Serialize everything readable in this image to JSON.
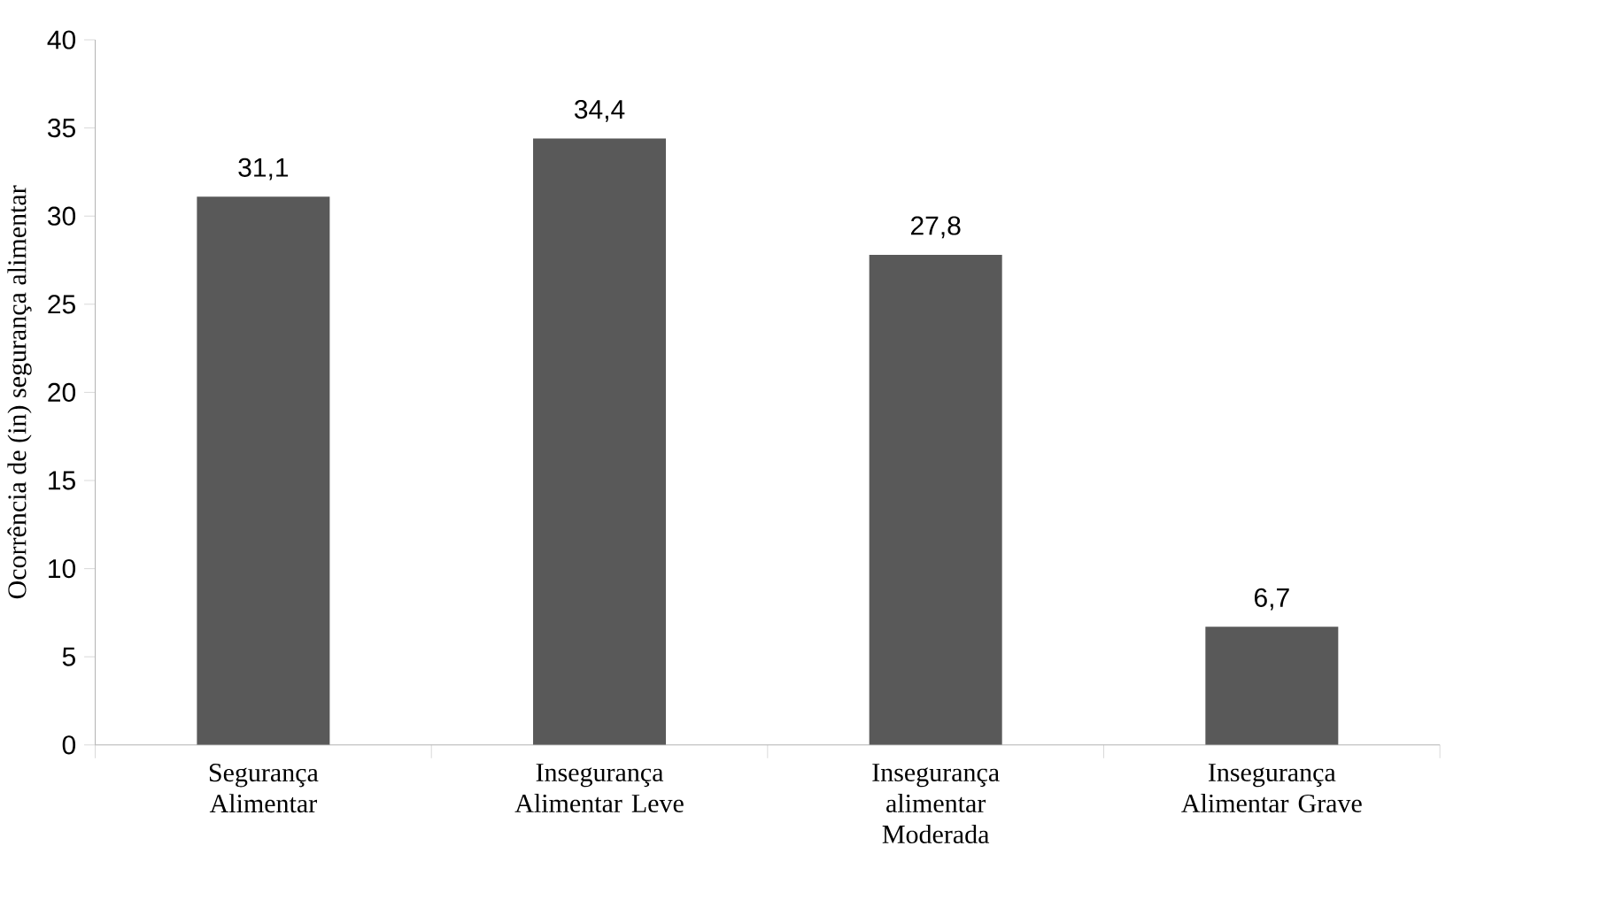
{
  "chart_data": {
    "type": "bar",
    "ylabel": "Ocorrência de (in) segurança alimentar",
    "categories": [
      "Segurança Alimentar",
      "Insegurança Alimentar Leve",
      "Insegurança alimentar Moderada",
      "Insegurança Alimentar Grave"
    ],
    "values": [
      31.1,
      34.4,
      27.8,
      6.7
    ],
    "value_labels": [
      "31,1",
      "34,4",
      "27,8",
      "6,7"
    ],
    "color": "#595959",
    "ylim": [
      0,
      40
    ],
    "yticks": [
      0,
      5,
      10,
      15,
      20,
      25,
      30,
      35,
      40
    ]
  }
}
